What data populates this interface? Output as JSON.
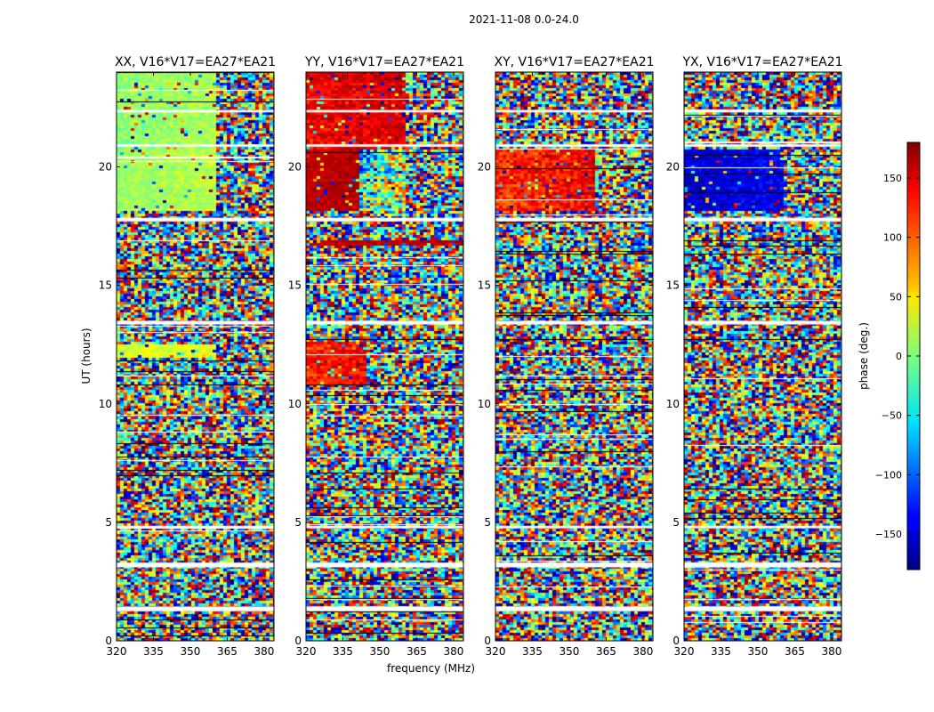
{
  "figure_title": "2021-11-08 0.0-24.0",
  "colors": {
    "colormap": "jet",
    "flag_rows": "#ffffff",
    "black_rows": "#000000"
  },
  "chart_data": [
    {
      "type": "heatmap",
      "title": "XX, V16*V17=EA27*EA21",
      "xlabel": "",
      "ylabel": "UT (hours)",
      "xlim": [
        320,
        384
      ],
      "ylim": [
        0,
        24
      ],
      "xticks": [
        "320",
        "335",
        "350",
        "365",
        "380"
      ],
      "yticks": [
        "0",
        "5",
        "10",
        "15",
        "20"
      ],
      "coherent_regions": [
        {
          "t_start": 18.1,
          "t_end": 20.7,
          "f_start": 320,
          "f_end": 361,
          "phase_low": -10,
          "phase_high": 40
        },
        {
          "t_start": 20.7,
          "t_end": 24.0,
          "f_start": 320,
          "f_end": 361,
          "phase_low": -20,
          "phase_high": 40
        },
        {
          "t_start": 11.9,
          "t_end": 12.5,
          "f_start": 320,
          "f_end": 361,
          "phase_low": 10,
          "phase_high": 60
        }
      ]
    },
    {
      "type": "heatmap",
      "title": "YY, V16*V17=EA27*EA21",
      "xlabel": "frequency (MHz)",
      "ylabel": "",
      "xlim": [
        320,
        384
      ],
      "ylim": [
        0,
        24
      ],
      "xticks": [
        "320",
        "335",
        "350",
        "365",
        "380"
      ],
      "yticks": [
        "0",
        "5",
        "10",
        "15",
        "20"
      ],
      "coherent_regions": [
        {
          "t_start": 18.1,
          "t_end": 20.7,
          "f_start": 320,
          "f_end": 342,
          "phase_low": 140,
          "phase_high": 180
        },
        {
          "t_start": 18.1,
          "t_end": 20.7,
          "f_start": 342,
          "f_end": 360,
          "phase_low": -180,
          "phase_high": 180
        },
        {
          "t_start": 20.7,
          "t_end": 24.0,
          "f_start": 320,
          "f_end": 360,
          "phase_low": 110,
          "phase_high": 180
        },
        {
          "t_start": 10.8,
          "t_end": 12.6,
          "f_start": 320,
          "f_end": 345,
          "phase_low": 90,
          "phase_high": 170
        },
        {
          "t_start": 16.7,
          "t_end": 16.9,
          "f_start": 320,
          "f_end": 384,
          "phase_low": 140,
          "phase_high": 180
        }
      ]
    },
    {
      "type": "heatmap",
      "title": "XY, V16*V17=EA27*EA21",
      "xlabel": "",
      "ylabel": "",
      "xlim": [
        320,
        384
      ],
      "ylim": [
        0,
        24
      ],
      "xticks": [
        "320",
        "335",
        "350",
        "365",
        "380"
      ],
      "yticks": [
        "0",
        "5",
        "10",
        "15",
        "20"
      ],
      "coherent_regions": [
        {
          "t_start": 18.1,
          "t_end": 20.7,
          "f_start": 320,
          "f_end": 360,
          "phase_low": 80,
          "phase_high": 180
        }
      ]
    },
    {
      "type": "heatmap",
      "title": "YX, V16*V17=EA27*EA21",
      "xlabel": "",
      "ylabel": "",
      "xlim": [
        320,
        384
      ],
      "ylim": [
        0,
        24
      ],
      "xticks": [
        "320",
        "335",
        "350",
        "365",
        "380"
      ],
      "yticks": [
        "0",
        "5",
        "10",
        "15",
        "20"
      ],
      "coherent_regions": [
        {
          "t_start": 18.1,
          "t_end": 20.7,
          "f_start": 320,
          "f_end": 360,
          "phase_low": -180,
          "phase_high": -110
        }
      ]
    }
  ],
  "colorbar": {
    "label": "phase (deg.)",
    "range": [
      -180,
      180
    ],
    "ticks": [
      "150",
      "100",
      "50",
      "0",
      "−50",
      "−100",
      "−150"
    ],
    "tick_values": [
      150,
      100,
      50,
      0,
      -50,
      -100,
      -150
    ]
  },
  "flagged_intervals": [
    {
      "t_start": 1.25,
      "t_end": 1.45
    },
    {
      "t_start": 3.1,
      "t_end": 3.3
    },
    {
      "t_start": 4.75,
      "t_end": 4.85
    },
    {
      "t_start": 13.35,
      "t_end": 13.5
    },
    {
      "t_start": 17.7,
      "t_end": 17.85
    },
    {
      "t_start": 20.85,
      "t_end": 20.95
    },
    {
      "t_start": 22.3,
      "t_end": 22.4
    }
  ]
}
